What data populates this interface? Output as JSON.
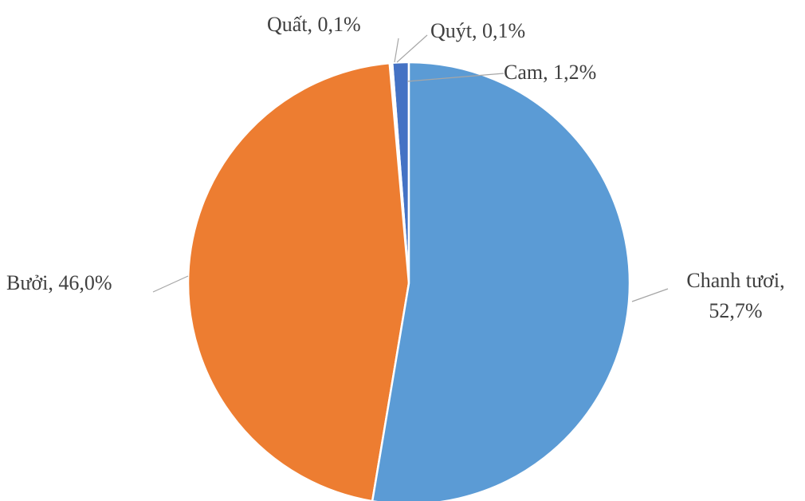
{
  "chart_data": {
    "type": "pie",
    "labels": [
      "Chanh tươi, 52,7%",
      "Bưởi, 46,0%",
      "Quất, 0,1%",
      "Quýt, 0,1%",
      "Cam, 1,2%"
    ],
    "values": [
      52.7,
      46.0,
      0.1,
      0.1,
      1.2
    ],
    "colors": [
      "#5b9bd5",
      "#ed7d31",
      "#a5a5a5",
      "#ffc000",
      "#4472c4"
    ]
  }
}
